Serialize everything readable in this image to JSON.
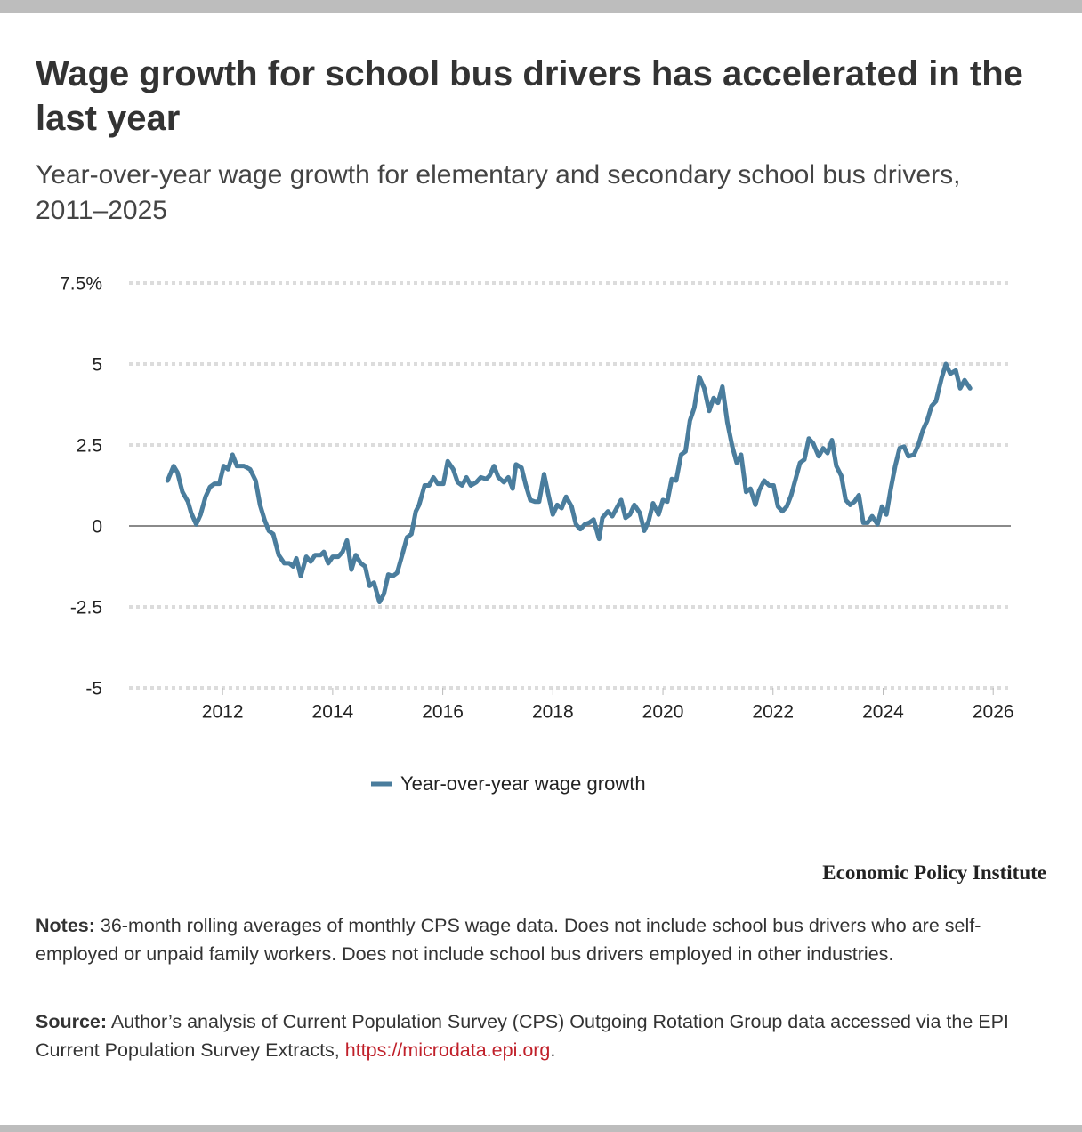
{
  "header": {
    "title": "Wage growth for school bus drivers has accelerated in the last year",
    "subtitle": "Year-over-year wage growth for elementary and secondary school bus drivers, 2011–2025"
  },
  "chart_data": {
    "type": "line",
    "x": [
      2011.0,
      2011.11,
      2011.18,
      2011.27,
      2011.37,
      2011.43,
      2011.52,
      2011.6,
      2011.69,
      2011.77,
      2011.85,
      2011.94,
      2012.02,
      2012.1,
      2012.18,
      2012.26,
      2012.39,
      2012.5,
      2012.6,
      2012.68,
      2012.76,
      2012.84,
      2012.92,
      2013.02,
      2013.12,
      2013.21,
      2013.28,
      2013.34,
      2013.42,
      2013.52,
      2013.6,
      2013.68,
      2013.78,
      2013.84,
      2013.92,
      2014.0,
      2014.1,
      2014.18,
      2014.26,
      2014.34,
      2014.42,
      2014.51,
      2014.59,
      2014.67,
      2014.75,
      2014.85,
      2014.93,
      2015.01,
      2015.09,
      2015.17,
      2015.27,
      2015.35,
      2015.43,
      2015.51,
      2015.57,
      2015.67,
      2015.75,
      2015.83,
      2015.91,
      2016.01,
      2016.09,
      2016.19,
      2016.27,
      2016.35,
      2016.43,
      2016.51,
      2016.61,
      2016.69,
      2016.79,
      2016.85,
      2016.93,
      2017.01,
      2017.11,
      2017.19,
      2017.27,
      2017.33,
      2017.43,
      2017.51,
      2017.59,
      2017.67,
      2017.75,
      2017.84,
      2017.92,
      2018.0,
      2018.08,
      2018.16,
      2018.24,
      2018.34,
      2018.42,
      2018.5,
      2018.58,
      2018.66,
      2018.74,
      2018.84,
      2018.9,
      2019.0,
      2019.08,
      2019.16,
      2019.24,
      2019.32,
      2019.4,
      2019.48,
      2019.58,
      2019.66,
      2019.74,
      2019.82,
      2019.92,
      2020.0,
      2020.08,
      2020.16,
      2020.24,
      2020.33,
      2020.41,
      2020.49,
      2020.57,
      2020.66,
      2020.75,
      2020.84,
      2020.92,
      2021.0,
      2021.08,
      2021.17,
      2021.26,
      2021.34,
      2021.42,
      2021.51,
      2021.59,
      2021.68,
      2021.75,
      2021.84,
      2021.93,
      2022.01,
      2022.09,
      2022.17,
      2022.25,
      2022.33,
      2022.41,
      2022.49,
      2022.57,
      2022.65,
      2022.73,
      2022.83,
      2022.91,
      2022.99,
      2023.07,
      2023.15,
      2023.24,
      2023.32,
      2023.4,
      2023.48,
      2023.56,
      2023.64,
      2023.72,
      2023.8,
      2023.9,
      2023.98,
      2024.06,
      2024.14,
      2024.22,
      2024.3,
      2024.38,
      2024.46,
      2024.56,
      2024.64,
      2024.72,
      2024.8,
      2024.88,
      2024.96,
      2025.06,
      2025.14,
      2025.22,
      2025.32,
      2025.4,
      2025.48,
      2025.58
    ],
    "series": [
      {
        "name": "Year-over-year wage growth",
        "color": "#4a7d9d",
        "values": [
          1.4,
          1.85,
          1.65,
          1.05,
          0.75,
          0.4,
          0.05,
          0.35,
          0.9,
          1.2,
          1.3,
          1.3,
          1.85,
          1.75,
          2.2,
          1.85,
          1.85,
          1.75,
          1.4,
          0.65,
          0.2,
          -0.15,
          -0.25,
          -0.9,
          -1.15,
          -1.15,
          -1.25,
          -1.0,
          -1.55,
          -0.95,
          -1.1,
          -0.9,
          -0.9,
          -0.8,
          -1.15,
          -0.95,
          -0.95,
          -0.8,
          -0.45,
          -1.35,
          -0.9,
          -1.15,
          -1.25,
          -1.85,
          -1.75,
          -2.35,
          -2.1,
          -1.5,
          -1.55,
          -1.45,
          -0.85,
          -0.35,
          -0.25,
          0.45,
          0.65,
          1.25,
          1.25,
          1.5,
          1.3,
          1.3,
          2.0,
          1.75,
          1.35,
          1.25,
          1.5,
          1.25,
          1.35,
          1.5,
          1.45,
          1.55,
          1.85,
          1.5,
          1.35,
          1.5,
          1.15,
          1.9,
          1.8,
          1.25,
          0.8,
          0.75,
          0.75,
          1.6,
          0.95,
          0.35,
          0.65,
          0.55,
          0.9,
          0.6,
          0.05,
          -0.1,
          0.05,
          0.1,
          0.2,
          -0.4,
          0.25,
          0.45,
          0.3,
          0.55,
          0.8,
          0.25,
          0.35,
          0.65,
          0.4,
          -0.15,
          0.15,
          0.7,
          0.35,
          0.8,
          0.75,
          1.45,
          1.4,
          2.2,
          2.3,
          3.25,
          3.65,
          4.6,
          4.25,
          3.55,
          3.95,
          3.8,
          4.3,
          3.2,
          2.45,
          1.95,
          2.2,
          1.05,
          1.15,
          0.65,
          1.1,
          1.4,
          1.25,
          1.25,
          0.6,
          0.45,
          0.6,
          0.95,
          1.45,
          1.95,
          2.05,
          2.7,
          2.55,
          2.15,
          2.4,
          2.25,
          2.65,
          1.85,
          1.55,
          0.8,
          0.65,
          0.75,
          0.95,
          0.1,
          0.1,
          0.3,
          0.05,
          0.6,
          0.35,
          1.15,
          1.85,
          2.4,
          2.45,
          2.15,
          2.2,
          2.5,
          2.95,
          3.25,
          3.7,
          3.85,
          4.55,
          5.0,
          4.7,
          4.8,
          4.25,
          4.5,
          4.25
        ]
      }
    ],
    "xlim": [
      2010.3,
      2026.32
    ],
    "xticks": [
      2012,
      2014,
      2016,
      2018,
      2020,
      2022,
      2024,
      2026
    ],
    "ylim": [
      -5,
      7.5
    ],
    "yticks": [
      -5,
      -2.5,
      0,
      2.5,
      {
        "value": 7.5,
        "label": "7.5%"
      },
      5
    ],
    "grid": true,
    "legend": "bottom"
  },
  "brand": "Economic Policy Institute",
  "notes": {
    "label": "Notes:",
    "text": " 36-month rolling averages of monthly CPS wage data. Does not include school bus drivers who are self-employed or unpaid family workers. Does not include school bus drivers employed in other industries."
  },
  "source": {
    "label": "Source:",
    "text": " Author’s analysis of Current Population Survey (CPS) Outgoing Rotation Group data accessed via the EPI Current Population Survey Extracts, ",
    "link": "https://microdata.epi.org",
    "end": "."
  }
}
